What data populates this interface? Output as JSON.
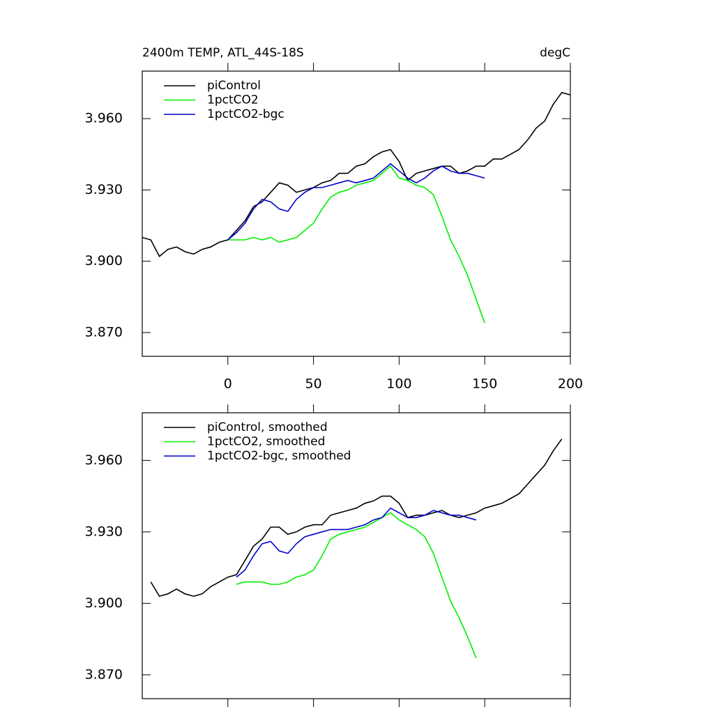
{
  "chart_data": [
    {
      "type": "line",
      "title": "2400m TEMP, ATL_44S-18S",
      "units": "degC",
      "x": [
        -50,
        -45,
        -40,
        -35,
        -30,
        -25,
        -20,
        -15,
        -10,
        -5,
        0,
        5,
        10,
        15,
        20,
        25,
        30,
        35,
        40,
        45,
        50,
        55,
        60,
        65,
        70,
        75,
        80,
        85,
        90,
        95,
        100,
        105,
        110,
        115,
        120,
        125,
        130,
        135,
        140,
        145,
        150,
        155,
        160,
        165,
        170,
        175,
        180,
        185,
        190,
        195,
        200
      ],
      "series": [
        {
          "name": "piControl",
          "color": "#000000",
          "values": [
            3.91,
            3.909,
            3.902,
            3.905,
            3.906,
            3.904,
            3.903,
            3.905,
            3.906,
            3.908,
            3.909,
            3.913,
            3.917,
            3.923,
            3.925,
            3.929,
            3.933,
            3.932,
            3.929,
            3.93,
            3.931,
            3.933,
            3.934,
            3.937,
            3.937,
            3.94,
            3.941,
            3.944,
            3.946,
            3.947,
            3.942,
            3.934,
            3.937,
            3.938,
            3.939,
            3.94,
            3.94,
            3.937,
            3.938,
            3.94,
            3.94,
            3.943,
            3.943,
            3.945,
            3.947,
            3.951,
            3.956,
            3.959,
            3.966,
            3.971,
            3.97
          ]
        },
        {
          "name": "1pctCO2",
          "color": "#00ee00",
          "values": [
            null,
            null,
            null,
            null,
            null,
            null,
            null,
            null,
            null,
            null,
            3.909,
            3.909,
            3.909,
            3.91,
            3.909,
            3.91,
            3.908,
            3.909,
            3.91,
            3.913,
            3.916,
            3.922,
            3.927,
            3.929,
            3.93,
            3.932,
            3.933,
            3.934,
            3.937,
            3.94,
            3.935,
            3.934,
            3.932,
            3.931,
            3.928,
            3.919,
            3.909,
            3.902,
            3.894,
            3.884,
            3.874,
            null,
            null,
            null,
            null,
            null,
            null,
            null,
            null,
            null,
            null
          ]
        },
        {
          "name": "1pctCO2-bgc",
          "color": "#0000cc",
          "values": [
            null,
            null,
            null,
            null,
            null,
            null,
            null,
            null,
            null,
            null,
            3.909,
            3.912,
            3.916,
            3.922,
            3.926,
            3.925,
            3.922,
            3.921,
            3.926,
            3.929,
            3.931,
            3.931,
            3.932,
            3.933,
            3.934,
            3.933,
            3.934,
            3.935,
            3.938,
            3.941,
            3.938,
            3.935,
            3.933,
            3.935,
            3.938,
            3.94,
            3.938,
            3.937,
            3.937,
            3.936,
            3.935,
            null,
            null,
            null,
            null,
            null,
            null,
            null,
            null,
            null,
            null
          ]
        }
      ],
      "xlim": [
        -50,
        200
      ],
      "xticks": [
        0,
        50,
        100,
        150,
        200
      ],
      "xtick_labels": true,
      "ylim": [
        3.86,
        3.98
      ],
      "yticks": [
        {
          "value": 3.87,
          "label": "3.870"
        },
        {
          "value": 3.9,
          "label": "3.900"
        },
        {
          "value": 3.93,
          "label": "3.930"
        },
        {
          "value": 3.96,
          "label": "3.960"
        }
      ],
      "legend": "top-left"
    },
    {
      "type": "line",
      "x": [
        -50,
        -45,
        -40,
        -35,
        -30,
        -25,
        -20,
        -15,
        -10,
        -5,
        0,
        5,
        10,
        15,
        20,
        25,
        30,
        35,
        40,
        45,
        50,
        55,
        60,
        65,
        70,
        75,
        80,
        85,
        90,
        95,
        100,
        105,
        110,
        115,
        120,
        125,
        130,
        135,
        140,
        145,
        150,
        155,
        160,
        165,
        170,
        175,
        180,
        185,
        190,
        195,
        200
      ],
      "series": [
        {
          "name": "piControl, smoothed",
          "color": "#000000",
          "values": [
            null,
            3.909,
            3.903,
            3.904,
            3.906,
            3.904,
            3.903,
            3.904,
            3.907,
            3.909,
            3.911,
            3.912,
            3.918,
            3.924,
            3.927,
            3.932,
            3.932,
            3.929,
            3.93,
            3.932,
            3.933,
            3.933,
            3.937,
            3.938,
            3.939,
            3.94,
            3.942,
            3.943,
            3.945,
            3.945,
            3.942,
            3.936,
            3.937,
            3.937,
            3.938,
            3.939,
            3.937,
            3.936,
            3.937,
            3.938,
            3.94,
            3.941,
            3.942,
            3.944,
            3.946,
            3.95,
            3.954,
            3.958,
            3.964,
            3.969,
            null
          ]
        },
        {
          "name": "1pctCO2, smoothed",
          "color": "#00ee00",
          "values": [
            null,
            null,
            null,
            null,
            null,
            null,
            null,
            null,
            null,
            null,
            null,
            3.908,
            3.909,
            3.909,
            3.909,
            3.908,
            3.908,
            3.909,
            3.911,
            3.912,
            3.914,
            3.92,
            3.927,
            3.929,
            3.93,
            3.931,
            3.932,
            3.934,
            3.936,
            3.938,
            3.935,
            3.933,
            3.931,
            3.928,
            3.921,
            3.911,
            3.901,
            3.894,
            3.886,
            3.877,
            null,
            null,
            null,
            null,
            null,
            null,
            null,
            null,
            null,
            null,
            null
          ]
        },
        {
          "name": "1pctCO2-bgc, smoothed",
          "color": "#0000cc",
          "values": [
            null,
            null,
            null,
            null,
            null,
            null,
            null,
            null,
            null,
            null,
            null,
            3.911,
            3.914,
            3.92,
            3.925,
            3.926,
            3.922,
            3.921,
            3.925,
            3.928,
            3.929,
            3.93,
            3.931,
            3.931,
            3.931,
            3.932,
            3.933,
            3.935,
            3.936,
            3.94,
            3.938,
            3.936,
            3.936,
            3.937,
            3.939,
            3.938,
            3.937,
            3.937,
            3.936,
            3.935,
            null,
            null,
            null,
            null,
            null,
            null,
            null,
            null,
            null,
            null,
            null
          ]
        }
      ],
      "xlim": [
        -50,
        200
      ],
      "xticks": [
        0,
        50,
        100,
        150,
        200
      ],
      "xtick_labels": false,
      "ylim": [
        3.86,
        3.98
      ],
      "yticks": [
        {
          "value": 3.87,
          "label": "3.870"
        },
        {
          "value": 3.9,
          "label": "3.900"
        },
        {
          "value": 3.93,
          "label": "3.930"
        },
        {
          "value": 3.96,
          "label": "3.960"
        }
      ],
      "legend": "top-left"
    }
  ]
}
